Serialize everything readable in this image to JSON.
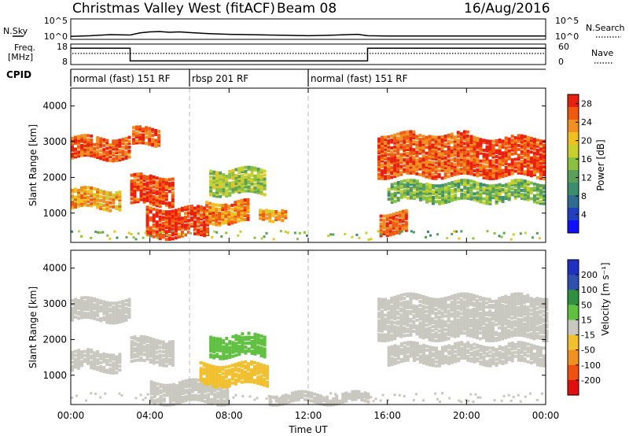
{
  "header": {
    "title": "Christmas Valley West (fitACF)",
    "beam": "Beam 08",
    "date": "16/Aug/2016"
  },
  "colors": {
    "grey": "#c8c8c0",
    "power_scale": [
      "#1010ff",
      "#2040c0",
      "#306c90",
      "#3c8c70",
      "#5aa05a",
      "#8cc040",
      "#c8d030",
      "#f0c020",
      "#f09020",
      "#f05a10",
      "#e82010"
    ],
    "velocity_scale": [
      "#2030c0",
      "#3050b0",
      "#309040",
      "#60c040",
      "#c8c8c0",
      "#c8c8c0",
      "#f0c030",
      "#f09020",
      "#f05010",
      "#e01010"
    ]
  },
  "chart_data": [
    {
      "type": "line",
      "panel": "noise",
      "ylabel_left": "N.Sky",
      "ylabel_right": "N.Search",
      "left_ticks": [
        "10^5",
        "10^0"
      ],
      "right_ticks": [
        "10^5",
        "10^0"
      ],
      "x_hours": [
        0,
        1,
        2,
        3,
        3.5,
        4,
        4.5,
        5,
        5.5,
        6,
        7,
        8,
        9,
        10,
        11,
        12,
        13,
        14,
        14.5,
        15,
        16,
        18,
        20,
        22,
        24
      ],
      "y_log": [
        0.4,
        0.6,
        0.9,
        0.8,
        1.4,
        1.7,
        1.8,
        1.6,
        1.7,
        1.5,
        1.2,
        1.0,
        0.9,
        0.8,
        0.7,
        0.6,
        0.7,
        0.9,
        1.0,
        0.6,
        0.5,
        0.5,
        0.5,
        0.5,
        0.5
      ]
    },
    {
      "type": "line",
      "panel": "frequency",
      "ylabel_left": "Freq. [MHz]",
      "ylabel_right": "Nave",
      "left_ticks": [
        "18",
        "8"
      ],
      "right_ticks": [
        "60",
        "0"
      ],
      "segments": [
        {
          "start": 0,
          "end": 3.0,
          "freq": 16.5
        },
        {
          "start": 3.0,
          "end": 15.0,
          "freq": 9.2
        },
        {
          "start": 15.0,
          "end": 24,
          "freq": 16.5
        }
      ],
      "nave": 33
    },
    {
      "type": "table",
      "panel": "cpid",
      "label": "CPID",
      "modes": [
        {
          "start": 0,
          "end": 6,
          "label": "normal (fast) 151 RF"
        },
        {
          "start": 6,
          "end": 12,
          "label": "rbsp 201 RF"
        },
        {
          "start": 12,
          "end": 24,
          "label": "normal (fast) 151 RF"
        }
      ]
    },
    {
      "type": "heatmap",
      "panel": "power",
      "ylabel": "Slant Range [km]",
      "yticks": [
        "1000",
        "2000",
        "3000",
        "4000"
      ],
      "ylim": [
        180,
        4500
      ],
      "colorbar_label": "Power [dB]",
      "colorbar_ticks": [
        "4",
        "8",
        "12",
        "16",
        "20",
        "24",
        "28"
      ],
      "clim": [
        0,
        30
      ],
      "features": [
        {
          "t0": 0.0,
          "t1": 2.9,
          "r0": 2500,
          "r1": 3100,
          "value": 26
        },
        {
          "t0": 3.1,
          "t1": 4.4,
          "r0": 2850,
          "r1": 3300,
          "value": 26
        },
        {
          "t0": 0.0,
          "t1": 2.5,
          "r0": 1100,
          "r1": 1600,
          "value": 22
        },
        {
          "t0": 3.0,
          "t1": 5.2,
          "r0": 1200,
          "r1": 2000,
          "value": 27
        },
        {
          "t0": 3.8,
          "t1": 7.0,
          "r0": 300,
          "r1": 1100,
          "value": 28
        },
        {
          "t0": 7.0,
          "t1": 9.8,
          "r0": 1500,
          "r1": 2200,
          "value": 16
        },
        {
          "t0": 6.8,
          "t1": 9.0,
          "r0": 700,
          "r1": 1300,
          "value": 24
        },
        {
          "t0": 9.5,
          "t1": 10.8,
          "r0": 800,
          "r1": 1100,
          "value": 22
        },
        {
          "t0": 15.5,
          "t1": 20.0,
          "r0": 2000,
          "r1": 3200,
          "value": 26
        },
        {
          "t0": 20.0,
          "t1": 24,
          "r0": 2000,
          "r1": 3100,
          "value": 27
        },
        {
          "t0": 16.0,
          "t1": 24,
          "r0": 1300,
          "r1": 1800,
          "value": 14
        },
        {
          "t0": 15.6,
          "t1": 17.0,
          "r0": 400,
          "r1": 1000,
          "value": 26
        }
      ]
    },
    {
      "type": "heatmap",
      "panel": "velocity",
      "ylabel": "Slant Range [km]",
      "yticks": [
        "1000",
        "2000",
        "3000",
        "4000"
      ],
      "ylim": [
        180,
        4500
      ],
      "colorbar_label": "Velocity [m s⁻¹]",
      "colorbar_ticks": [
        "200",
        "100",
        "50",
        "15",
        "-15",
        "-50",
        "-100",
        "-200"
      ],
      "clim": [
        -250,
        250
      ],
      "features": [
        {
          "t0": 0.0,
          "t1": 2.9,
          "r0": 2500,
          "r1": 3100,
          "value": 0
        },
        {
          "t0": 0.0,
          "t1": 2.5,
          "r0": 1100,
          "r1": 1600,
          "value": 0
        },
        {
          "t0": 3.0,
          "t1": 5.2,
          "r0": 1300,
          "r1": 2000,
          "value": 0
        },
        {
          "t0": 4.0,
          "t1": 8.0,
          "r0": 200,
          "r1": 800,
          "value": 0
        },
        {
          "t0": 6.5,
          "t1": 10.0,
          "r0": 700,
          "r1": 1300,
          "value": -70
        },
        {
          "t0": 7.0,
          "t1": 9.8,
          "r0": 1500,
          "r1": 2100,
          "value": 60
        },
        {
          "t0": 10.0,
          "t1": 15.0,
          "r0": 200,
          "r1": 450,
          "value": 30
        },
        {
          "t0": 15.5,
          "t1": 24,
          "r0": 2000,
          "r1": 3200,
          "value": 0
        },
        {
          "t0": 16.0,
          "t1": 24,
          "r0": 1300,
          "r1": 1800,
          "value": 0
        }
      ]
    }
  ],
  "xaxis": {
    "label": "Time UT",
    "ticks": [
      "00:00",
      "04:00",
      "08:00",
      "12:00",
      "16:00",
      "20:00",
      "00:00"
    ],
    "xlim": [
      0,
      24
    ]
  }
}
